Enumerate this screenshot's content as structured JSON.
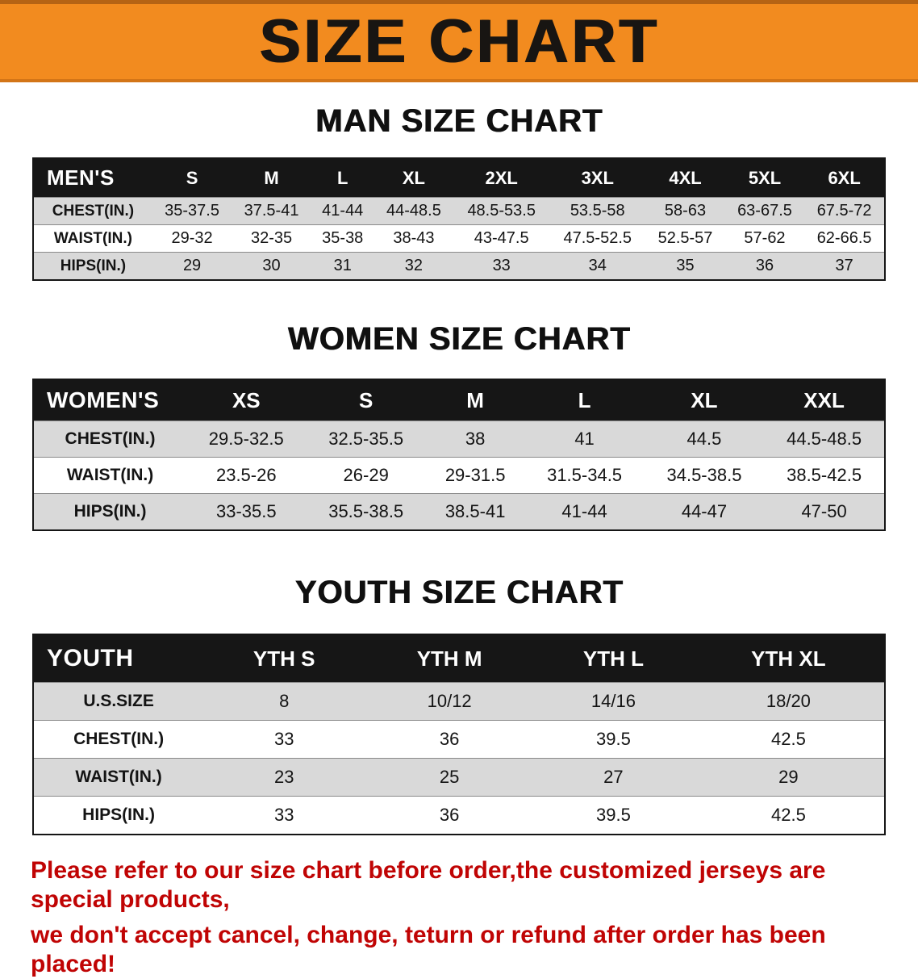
{
  "banner": {
    "title": "SIZE CHART"
  },
  "chart_data": [
    {
      "type": "table",
      "title": "MAN SIZE CHART",
      "columns": [
        "MEN'S",
        "S",
        "M",
        "L",
        "XL",
        "2XL",
        "3XL",
        "4XL",
        "5XL",
        "6XL"
      ],
      "rows": [
        [
          "CHEST(IN.)",
          "35-37.5",
          "37.5-41",
          "41-44",
          "44-48.5",
          "48.5-53.5",
          "53.5-58",
          "58-63",
          "63-67.5",
          "67.5-72"
        ],
        [
          "WAIST(IN.)",
          "29-32",
          "32-35",
          "35-38",
          "38-43",
          "43-47.5",
          "47.5-52.5",
          "52.5-57",
          "57-62",
          "62-66.5"
        ],
        [
          "HIPS(IN.)",
          "29",
          "30",
          "31",
          "32",
          "33",
          "34",
          "35",
          "36",
          "37"
        ]
      ]
    },
    {
      "type": "table",
      "title": "WOMEN SIZE CHART",
      "columns": [
        "WOMEN'S",
        "XS",
        "S",
        "M",
        "L",
        "XL",
        "XXL"
      ],
      "rows": [
        [
          "CHEST(IN.)",
          "29.5-32.5",
          "32.5-35.5",
          "38",
          "41",
          "44.5",
          "44.5-48.5"
        ],
        [
          "WAIST(IN.)",
          "23.5-26",
          "26-29",
          "29-31.5",
          "31.5-34.5",
          "34.5-38.5",
          "38.5-42.5"
        ],
        [
          "HIPS(IN.)",
          "33-35.5",
          "35.5-38.5",
          "38.5-41",
          "41-44",
          "44-47",
          "47-50"
        ]
      ]
    },
    {
      "type": "table",
      "title": "YOUTH SIZE CHART",
      "columns": [
        "YOUTH",
        "YTH S",
        "YTH M",
        "YTH L",
        "YTH XL"
      ],
      "rows": [
        [
          "U.S.SIZE",
          "8",
          "10/12",
          "14/16",
          "18/20"
        ],
        [
          "CHEST(IN.)",
          "33",
          "36",
          "39.5",
          "42.5"
        ],
        [
          "WAIST(IN.)",
          "23",
          "25",
          "27",
          "29"
        ],
        [
          "HIPS(IN.)",
          "33",
          "36",
          "39.5",
          "42.5"
        ]
      ]
    }
  ],
  "disclaimer": {
    "line1": "Please refer to our size chart before order,the customized jerseys are special products,",
    "line2": "we don't accept cancel, change, teturn or refund after order has been placed!"
  },
  "colors": {
    "banner_orange": "#F28B1F",
    "header_black": "#161616",
    "row_gray": "#D9D9D9",
    "disclaimer_red": "#C00404"
  }
}
